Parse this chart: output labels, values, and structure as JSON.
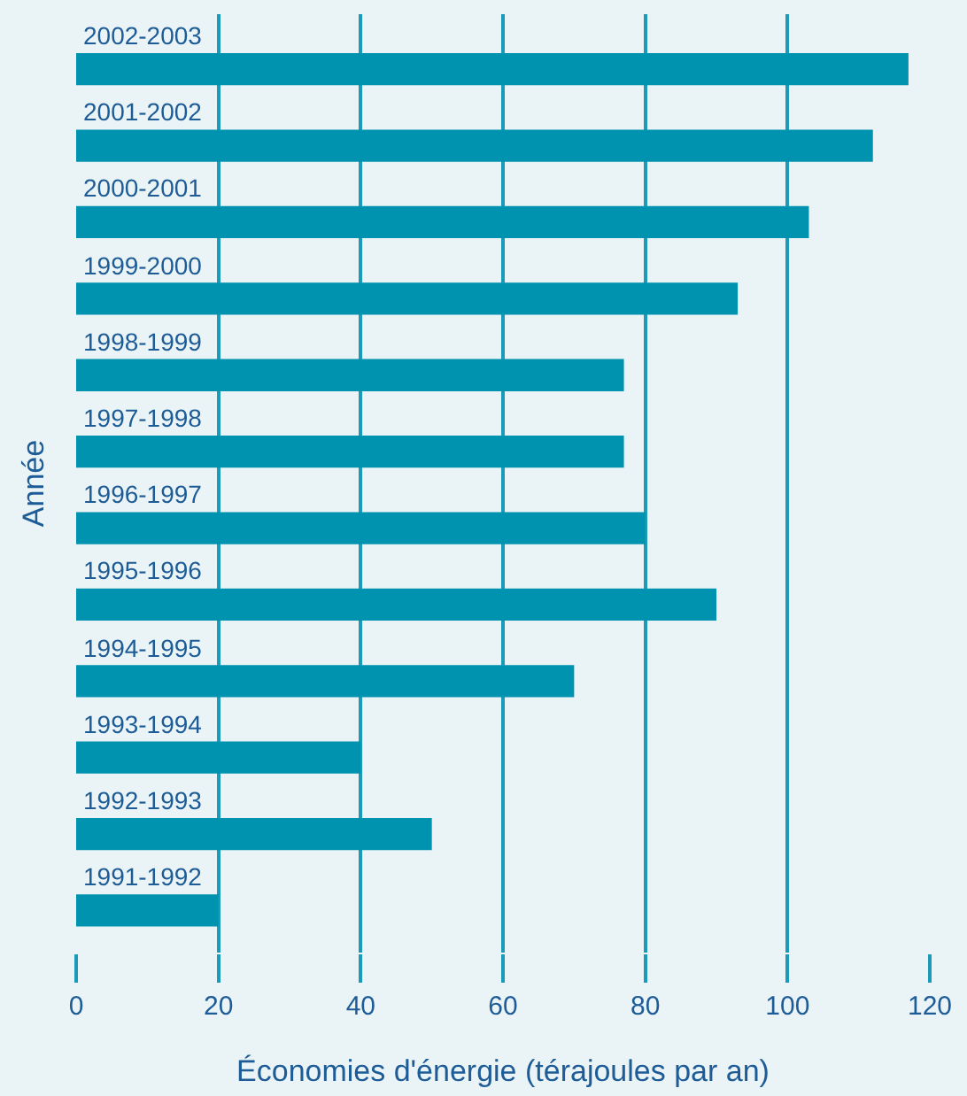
{
  "chart_data": {
    "type": "bar",
    "orientation": "horizontal",
    "categories": [
      "2002-2003",
      "2001-2002",
      "2000-2001",
      "1999-2000",
      "1998-1999",
      "1997-1998",
      "1996-1997",
      "1995-1996",
      "1994-1995",
      "1993-1994",
      "1992-1993",
      "1991-1992"
    ],
    "values": [
      117,
      112,
      103,
      93,
      77,
      77,
      80,
      90,
      70,
      40,
      50,
      20
    ],
    "color": "#0093b0",
    "xlabel": "Économies d'énergie (térajoules par an)",
    "ylabel": "Année",
    "xlim": [
      0,
      120
    ],
    "xticks": [
      0,
      20,
      40,
      60,
      80,
      100,
      120
    ],
    "grid": "x"
  }
}
